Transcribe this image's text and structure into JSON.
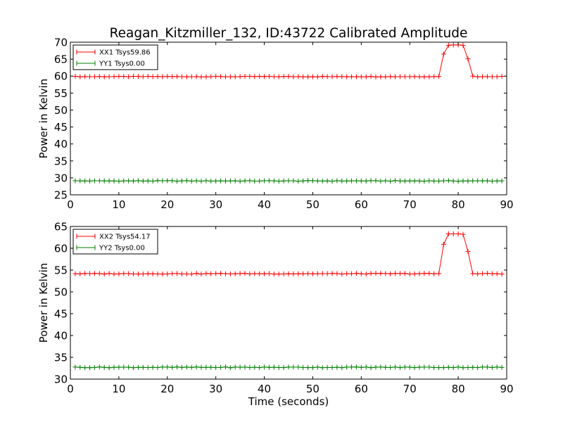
{
  "chart_data": [
    {
      "type": "line",
      "title": "Reagan_Kitzmiller_132, ID:43722 Calibrated Amplitude",
      "xlabel": "",
      "ylabel": "Power in Kelvin",
      "xlim": [
        0,
        90
      ],
      "ylim": [
        25,
        70
      ],
      "xticks": [
        0,
        10,
        20,
        30,
        40,
        50,
        60,
        70,
        80,
        90
      ],
      "yticks": [
        25,
        30,
        35,
        40,
        45,
        50,
        55,
        60,
        65,
        70
      ],
      "legend_position": "upper-left",
      "grid": false,
      "series": [
        {
          "name": "XX1 Tsys59.86",
          "color": "#ff0000",
          "x_range": [
            1,
            89
          ],
          "baseline": 59.86,
          "peak": {
            "x": [
              76,
              77,
              78,
              79,
              80,
              81,
              82,
              83
            ],
            "values": [
              59.9,
              66.5,
              69.1,
              69.2,
              69.2,
              69.1,
              65.1,
              60.0
            ]
          }
        },
        {
          "name": "YY1 Tsys0.00",
          "color": "#008000",
          "x_range": [
            1,
            89
          ],
          "baseline": 29.1
        }
      ]
    },
    {
      "type": "line",
      "title": "",
      "xlabel": "Time (seconds)",
      "ylabel": "Power in Kelvin",
      "xlim": [
        0,
        90
      ],
      "ylim": [
        30,
        65
      ],
      "xticks": [
        0,
        10,
        20,
        30,
        40,
        50,
        60,
        70,
        80,
        90
      ],
      "yticks": [
        30,
        35,
        40,
        45,
        50,
        55,
        60,
        65
      ],
      "legend_position": "upper-left",
      "grid": false,
      "series": [
        {
          "name": "XX2 Tsys54.17",
          "color": "#ff0000",
          "x_range": [
            1,
            89
          ],
          "baseline": 54.17,
          "peak": {
            "x": [
              76,
              77,
              78,
              79,
              80,
              81,
              82,
              83
            ],
            "values": [
              54.2,
              60.9,
              63.3,
              63.3,
              63.3,
              63.2,
              59.3,
              54.2
            ]
          }
        },
        {
          "name": "YY2 Tsys0.00",
          "color": "#008000",
          "x_range": [
            1,
            89
          ],
          "baseline": 32.7
        }
      ]
    }
  ]
}
